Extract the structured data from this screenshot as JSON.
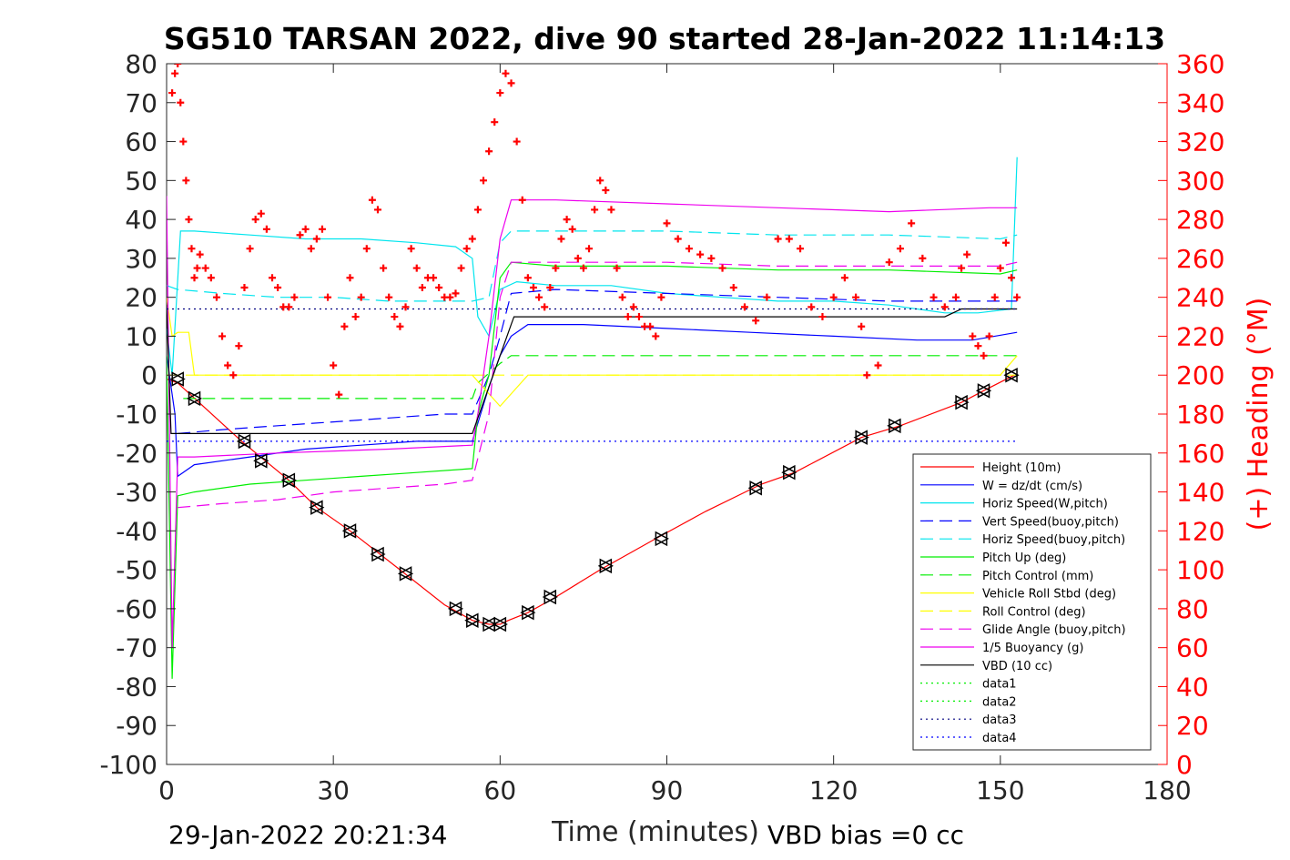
{
  "chart_data": {
    "type": "line",
    "title": "SG510 TARSAN 2022, dive 90 started 28-Jan-2022 11:14:13",
    "xlabel": "Time (minutes)",
    "ylabel_right": "(+) Heading (°M)",
    "xlim": [
      0,
      180
    ],
    "ylim_left": [
      -100,
      80
    ],
    "ylim_right": [
      0,
      360
    ],
    "x_ticks": [
      0,
      30,
      60,
      90,
      120,
      150,
      180
    ],
    "y_ticks_left": [
      80,
      70,
      60,
      50,
      40,
      30,
      20,
      10,
      0,
      -10,
      -20,
      -30,
      -40,
      -50,
      -60,
      -70,
      -80,
      -90,
      -100
    ],
    "y_ticks_right": [
      360,
      340,
      320,
      300,
      280,
      260,
      240,
      220,
      200,
      180,
      160,
      140,
      120,
      100,
      80,
      60,
      40,
      20,
      0
    ],
    "footer_left": "29-Jan-2022 20:21:34",
    "footer_right": "VBD bias =0 cc",
    "grid": false,
    "legend_position": "lower-right",
    "series": [
      {
        "name": "Height (10m)",
        "color": "#ff0000",
        "dash": "solid",
        "x": [
          0,
          2,
          13.5,
          22,
          27,
          33,
          42,
          50,
          55,
          58,
          60,
          61.5,
          65,
          70,
          78,
          88,
          97,
          107,
          113,
          125,
          132,
          143,
          147,
          152.5
        ],
        "y": [
          -1,
          -2,
          -17,
          -27,
          -34,
          -40,
          -50,
          -59,
          -63,
          -64,
          -64,
          -63,
          -61,
          -57,
          -50,
          -42,
          -35,
          -28,
          -25,
          -16,
          -13,
          -7,
          -4,
          0
        ]
      },
      {
        "name": "W = dz/dt (cm/s)",
        "color": "#0000ff",
        "dash": "solid",
        "x": [
          0,
          1.5,
          2,
          5,
          15,
          25,
          35,
          45,
          55,
          58,
          60,
          62,
          65,
          75,
          90,
          105,
          120,
          135,
          145,
          153
        ],
        "y": [
          5,
          -10,
          -26,
          -23,
          -21,
          -19,
          -18,
          -17,
          -17,
          -3,
          5,
          10,
          13,
          13,
          12,
          11,
          10,
          9,
          9,
          11
        ]
      },
      {
        "name": "Horiz Speed(W,pitch)",
        "color": "#00e5ee",
        "dash": "solid",
        "x": [
          0,
          1,
          2.5,
          5,
          15,
          25,
          35,
          45,
          52,
          55,
          56,
          58,
          60,
          63,
          70,
          80,
          90,
          100,
          110,
          120,
          130,
          140,
          146,
          152,
          153
        ],
        "y": [
          12,
          0,
          37,
          37,
          36,
          35,
          35,
          34,
          33,
          30,
          15,
          10,
          22,
          24,
          23,
          23,
          21,
          20,
          19,
          19,
          18,
          16,
          16,
          17,
          56
        ]
      },
      {
        "name": "Vert Speed(buoy,pitch)",
        "color": "#0000ff",
        "dash": "dashed",
        "x": [
          2,
          10,
          20,
          30,
          40,
          50,
          55,
          58,
          60,
          62,
          70,
          90,
          110,
          130,
          150,
          153
        ],
        "y": [
          -15,
          -14,
          -13,
          -12,
          -11,
          -10,
          -10,
          0,
          10,
          21,
          22,
          21,
          20,
          19,
          19,
          19
        ]
      },
      {
        "name": "Horiz Speed(buoy,pitch)",
        "color": "#00e5ee",
        "dash": "dashed",
        "x": [
          0,
          2,
          10,
          20,
          30,
          40,
          50,
          55,
          58,
          60,
          62,
          70,
          90,
          110,
          130,
          150,
          153
        ],
        "y": [
          23,
          22,
          21,
          20,
          20,
          19,
          19,
          19,
          20,
          34,
          37,
          37,
          37,
          36,
          36,
          35,
          36
        ]
      },
      {
        "name": "Pitch Up (deg)",
        "color": "#00ee00",
        "dash": "solid",
        "x": [
          0,
          1,
          2,
          5,
          15,
          25,
          35,
          45,
          55,
          56,
          58,
          60,
          62,
          70,
          90,
          110,
          130,
          150,
          153
        ],
        "y": [
          5,
          -78,
          -31,
          -30,
          -28,
          -27,
          -26,
          -25,
          -24,
          -10,
          0,
          25,
          29,
          28,
          28,
          27,
          27,
          26,
          27
        ]
      },
      {
        "name": "Pitch Control (mm)",
        "color": "#00ee00",
        "dash": "dashed",
        "x": [
          3,
          55,
          56,
          60,
          62,
          153
        ],
        "y": [
          -6,
          -6,
          -2,
          3,
          5,
          5
        ]
      },
      {
        "name": "Vehicle Roll Stbd (deg)",
        "color": "#ffff00",
        "dash": "solid",
        "x": [
          0,
          1,
          2,
          4,
          5,
          10,
          15,
          20,
          25,
          30,
          35,
          40,
          45,
          50,
          55,
          60,
          65,
          70,
          80,
          90,
          100,
          110,
          120,
          130,
          140,
          150,
          153
        ],
        "y": [
          20,
          10,
          11,
          11,
          0,
          0,
          0,
          0,
          0,
          0,
          0,
          0,
          0,
          0,
          0,
          -8,
          0,
          0,
          0,
          0,
          0,
          0,
          0,
          0,
          0,
          0,
          5
        ]
      },
      {
        "name": "Roll Control (deg)",
        "color": "#ffff00",
        "dash": "dashed",
        "x": [
          0,
          153
        ],
        "y": [
          0,
          0
        ]
      },
      {
        "name": "Glide Angle (buoy,pitch)",
        "color": "#ee00ee",
        "dash": "dashed",
        "x": [
          2,
          10,
          20,
          30,
          40,
          50,
          55,
          58,
          60,
          62,
          70,
          90,
          110,
          130,
          150,
          153
        ],
        "y": [
          -34,
          -33,
          -32,
          -30,
          -29,
          -28,
          -27,
          -10,
          20,
          29,
          29,
          29,
          28,
          28,
          28,
          29
        ]
      },
      {
        "name": "1/5 Buoyancy (g)",
        "color": "#ee00ee",
        "dash": "solid",
        "x": [
          0,
          1,
          2,
          5,
          20,
          40,
          55,
          56,
          58,
          60,
          62,
          70,
          90,
          110,
          130,
          148,
          153
        ],
        "y": [
          46,
          -70,
          -21,
          -21,
          -20,
          -19,
          -18,
          -10,
          10,
          35,
          45,
          45,
          44,
          43,
          42,
          43,
          43
        ]
      },
      {
        "name": "VBD (10 cc)",
        "color": "#000000",
        "dash": "solid",
        "x": [
          0,
          0.8,
          1.3,
          55,
          60,
          62,
          62.5,
          140,
          143,
          153
        ],
        "y": [
          18,
          -15,
          -15,
          -15,
          5,
          13,
          15,
          15,
          17,
          17
        ]
      },
      {
        "name": "data1",
        "color": "#00ee00",
        "dash": "dotted",
        "x": [],
        "y": []
      },
      {
        "name": "data2",
        "color": "#00ee00",
        "dash": "dotted",
        "x": [],
        "y": []
      },
      {
        "name": "data3",
        "color": "#000080",
        "dash": "dotted",
        "x": [
          0,
          153
        ],
        "y": [
          17,
          17
        ]
      },
      {
        "name": "data4",
        "color": "#0000ff",
        "dash": "dotted",
        "x": [
          0,
          153
        ],
        "y": [
          -17,
          -17
        ]
      }
    ],
    "heading": {
      "axis": "right",
      "color": "#ff0000",
      "marker": "+",
      "x": [
        1.0,
        1.5,
        2.0,
        2.5,
        3.0,
        3.5,
        4.0,
        4.5,
        5.0,
        5.5,
        6.0,
        7.0,
        8.0,
        9.0,
        10.0,
        11.0,
        12.0,
        13.0,
        14.0,
        15.0,
        16.0,
        17.0,
        18.0,
        19.0,
        20.0,
        21.0,
        22.0,
        23.0,
        24.0,
        25.0,
        26.0,
        27.0,
        28.0,
        29.0,
        30.0,
        31.0,
        32.0,
        33.0,
        34.0,
        35.0,
        36.0,
        37.0,
        38.0,
        39.0,
        40.0,
        41.0,
        42.0,
        43.0,
        44.0,
        45.0,
        46.0,
        47.0,
        48.0,
        49.0,
        50.0,
        51.0,
        52.0,
        53.0,
        54.0,
        55.0,
        56.0,
        57.0,
        58.0,
        59.0,
        60.0,
        61.0,
        62.0,
        63.0,
        64.0,
        65.0,
        66.0,
        67.0,
        68.0,
        69.0,
        70.0,
        71.0,
        72.0,
        73.0,
        74.0,
        75.0,
        76.0,
        77.0,
        78.0,
        79.0,
        80.0,
        81.0,
        82.0,
        83.0,
        84.0,
        85.0,
        86.0,
        87.0,
        88.0,
        89.0,
        90.0,
        92.0,
        94.0,
        96.0,
        98.0,
        100.0,
        102.0,
        104.0,
        106.0,
        108.0,
        110.0,
        112.0,
        114.0,
        116.0,
        118.0,
        120.0,
        122.0,
        124.0,
        125.0,
        126.0,
        128.0,
        130.0,
        132.0,
        134.0,
        136.0,
        138.0,
        140.0,
        142.0,
        143.0,
        144.0,
        145.0,
        146.0,
        147.0,
        148.0,
        149.0,
        150.0,
        151.0,
        152.0,
        153.0
      ],
      "y": [
        345,
        355,
        360,
        340,
        320,
        300,
        280,
        265,
        250,
        255,
        262,
        255,
        250,
        240,
        220,
        205,
        200,
        215,
        245,
        265,
        280,
        283,
        275,
        250,
        245,
        235,
        235,
        240,
        272,
        275,
        265,
        270,
        275,
        240,
        205,
        190,
        225,
        250,
        230,
        240,
        265,
        290,
        285,
        255,
        240,
        230,
        225,
        235,
        265,
        255,
        245,
        250,
        250,
        245,
        240,
        240,
        242,
        255,
        265,
        270,
        285,
        300,
        315,
        330,
        345,
        355,
        350,
        320,
        290,
        250,
        245,
        240,
        235,
        245,
        255,
        270,
        280,
        275,
        260,
        255,
        265,
        285,
        300,
        295,
        285,
        255,
        240,
        230,
        235,
        230,
        225,
        225,
        220,
        240,
        278,
        270,
        265,
        262,
        260,
        255,
        245,
        235,
        228,
        240,
        270,
        270,
        265,
        235,
        230,
        240,
        250,
        240,
        225,
        200,
        205,
        258,
        265,
        278,
        260,
        240,
        235,
        240,
        255,
        262,
        220,
        215,
        210,
        220,
        240,
        255,
        268,
        250,
        240
      ]
    },
    "vbd_markers": {
      "x": [
        2,
        5,
        14,
        17,
        22,
        27,
        33,
        38,
        43,
        52,
        55,
        58,
        60,
        65,
        69,
        79,
        89,
        106,
        112,
        125,
        131,
        143,
        147,
        152
      ],
      "y": [
        -1,
        -6,
        -17,
        -22,
        -27,
        -34,
        -40,
        -46,
        -51,
        -60,
        -63,
        -64,
        -64,
        -61,
        -57,
        -49,
        -42,
        -29,
        -25,
        -16,
        -13,
        -7,
        -4,
        0
      ]
    }
  }
}
